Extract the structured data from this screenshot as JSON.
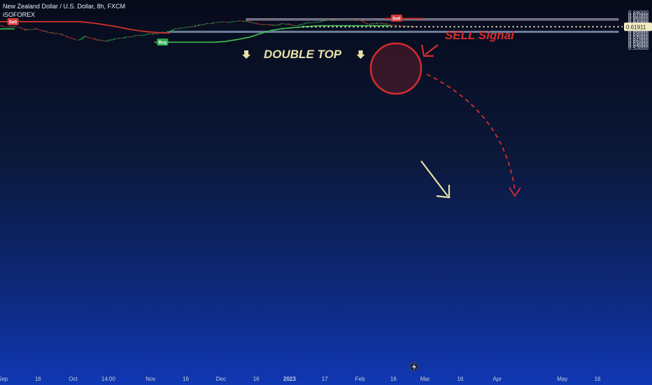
{
  "header": {
    "symbol_line": "New Zealand Dollar / U.S. Dollar, 8h, FXCM",
    "indicator_name": "iSOFOREX"
  },
  "chart_data": {
    "type": "candlestick",
    "y_ticks": [
      0.68,
      0.67,
      0.66,
      0.65,
      0.64,
      0.63,
      0.62,
      0.61,
      0.6,
      0.59,
      0.58,
      0.57,
      0.56,
      0.55,
      0.54,
      0.53
    ],
    "ylim": [
      0.53,
      0.68
    ],
    "x_ticks": [
      {
        "label": "Sep",
        "idx": 0
      },
      {
        "label": "16",
        "idx": 20
      },
      {
        "label": "Oct",
        "idx": 40
      },
      {
        "label": "14:00",
        "idx": 60
      },
      {
        "label": "Nov",
        "idx": 84
      },
      {
        "label": "16",
        "idx": 104
      },
      {
        "label": "Dec",
        "idx": 124
      },
      {
        "label": "16",
        "idx": 144
      },
      {
        "label": "2023",
        "idx": 163,
        "bold": true
      },
      {
        "label": "17",
        "idx": 183
      },
      {
        "label": "Feb",
        "idx": 203
      },
      {
        "label": "16",
        "idx": 222
      },
      {
        "label": "Mar",
        "idx": 240
      },
      {
        "label": "16",
        "idx": 260
      },
      {
        "label": "Apr",
        "idx": 281
      },
      {
        "label": "May",
        "idx": 318
      },
      {
        "label": "16",
        "idx": 338
      }
    ],
    "price_keyframes": [
      [
        0,
        0.625
      ],
      [
        4,
        0.617
      ],
      [
        8,
        0.623
      ],
      [
        14,
        0.606
      ],
      [
        20,
        0.61
      ],
      [
        26,
        0.598
      ],
      [
        34,
        0.588
      ],
      [
        40,
        0.57
      ],
      [
        44,
        0.562
      ],
      [
        48,
        0.578
      ],
      [
        54,
        0.565
      ],
      [
        60,
        0.557
      ],
      [
        64,
        0.566
      ],
      [
        70,
        0.572
      ],
      [
        76,
        0.58
      ],
      [
        82,
        0.586
      ],
      [
        88,
        0.59
      ],
      [
        92,
        0.595
      ],
      [
        96,
        0.6
      ],
      [
        100,
        0.611
      ],
      [
        104,
        0.615
      ],
      [
        108,
        0.62
      ],
      [
        114,
        0.627
      ],
      [
        118,
        0.633
      ],
      [
        124,
        0.641
      ],
      [
        130,
        0.639
      ],
      [
        136,
        0.645
      ],
      [
        140,
        0.642
      ],
      [
        146,
        0.633
      ],
      [
        152,
        0.628
      ],
      [
        156,
        0.626
      ],
      [
        160,
        0.632
      ],
      [
        164,
        0.629
      ],
      [
        168,
        0.623
      ],
      [
        172,
        0.631
      ],
      [
        176,
        0.637
      ],
      [
        180,
        0.641
      ],
      [
        184,
        0.645
      ],
      [
        188,
        0.65
      ],
      [
        192,
        0.649
      ],
      [
        196,
        0.647
      ],
      [
        200,
        0.648
      ],
      [
        203,
        0.652
      ],
      [
        206,
        0.64
      ],
      [
        210,
        0.63
      ],
      [
        214,
        0.635
      ],
      [
        218,
        0.632
      ],
      [
        222,
        0.627
      ],
      [
        226,
        0.625
      ],
      [
        230,
        0.622
      ],
      [
        234,
        0.621
      ],
      [
        236,
        0.617
      ]
    ],
    "trail": {
      "red_keyframes": [
        [
          0,
          0.641
        ],
        [
          46,
          0.641
        ],
        [
          56,
          0.632
        ],
        [
          66,
          0.62
        ],
        [
          74,
          0.608
        ],
        [
          82,
          0.599
        ],
        [
          92,
          0.593
        ],
        [
          96,
          0.592
        ]
      ],
      "green_keyframes": [
        [
          0,
          0.61
        ],
        [
          8,
          0.61
        ]
      ],
      "green2_keyframes": [
        [
          88,
          0.553
        ],
        [
          122,
          0.553
        ],
        [
          128,
          0.556
        ],
        [
          136,
          0.566
        ],
        [
          142,
          0.575
        ],
        [
          148,
          0.59
        ],
        [
          154,
          0.603
        ],
        [
          160,
          0.611
        ],
        [
          166,
          0.615
        ],
        [
          172,
          0.619
        ],
        [
          178,
          0.622
        ],
        [
          182,
          0.624
        ],
        [
          200,
          0.624
        ],
        [
          222,
          0.624
        ]
      ],
      "red2_keyframes": [
        [
          219,
          0.6545
        ],
        [
          240,
          0.6545
        ]
      ]
    },
    "zones": [
      {
        "name": "resistance",
        "y_top": 0.6538,
        "y_bottom": 0.6475,
        "x_start": 140,
        "x_end": 353
      },
      {
        "name": "support",
        "y_top": 0.6005,
        "y_bottom": 0.595,
        "x_start": 96,
        "x_end": 353
      }
    ],
    "last_price": 0.61911,
    "last_price_label": "0.61911",
    "signals": [
      {
        "label": "Sell",
        "idx": 7,
        "price": 0.641,
        "color": "#d93a3a"
      },
      {
        "label": "Buy",
        "idx": 92,
        "price": 0.5535,
        "color": "#2ea84f"
      },
      {
        "label": "Sell",
        "idx": 225,
        "price": 0.6565,
        "color": "#d93a3a"
      }
    ],
    "annotations": {
      "double_top": "DOUBLE TOP",
      "sell_signal": "SELL Signal"
    }
  },
  "colors": {
    "bull": "#2fb053",
    "bear": "#c9352f",
    "trail_red": "#d6332c",
    "trail_green": "#3fb950",
    "annotation_yellow": "#e9e2a8",
    "annotation_red": "#d42d2d",
    "zone_fill": "#a9bde0",
    "price_label_bg": "#f2eec4"
  }
}
